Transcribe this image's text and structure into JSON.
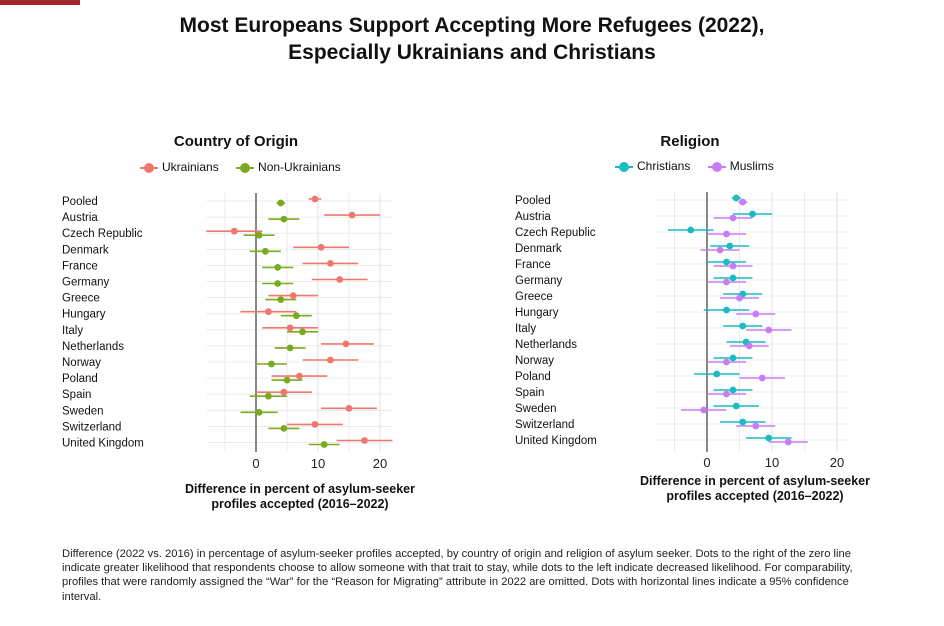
{
  "title_line1": "Most Europeans Support Accepting More Refugees (2022),",
  "title_line2": "Especially Ukrainians and Christians",
  "caption": "Difference (2022 vs. 2016) in percentage of asylum-seeker profiles accepted, by country of origin and religion of asylum seeker. Dots to the right of the zero line indicate greater likelihood that respondents choose to allow someone with that trait to stay, while dots to the left indicate decreased likelihood. For comparability, profiles that were randomly assigned the “War” for the “Reason for Migrating” attribute in 2022 are omitted. Dots with horizontal lines indicate a 95% confidence interval.",
  "colors": {
    "accent": "#a3262a",
    "ukrainians": "#f0776d",
    "non_ukrainians": "#7aaa1e",
    "christians": "#19bcc2",
    "muslims": "#c77cf5",
    "zero_line": "#555555",
    "grid": "#e6e6e6"
  },
  "chart_data": [
    {
      "type": "scatter",
      "title": "Country of Origin",
      "xlabel": "Difference in percent of asylum-seeker profiles accepted (2016–2022)",
      "xlim": [
        -8,
        22
      ],
      "xticks": [
        0,
        10,
        20
      ],
      "grid": true,
      "legend_position": "top",
      "categories": [
        "Pooled",
        "Austria",
        "Czech Republic",
        "Denmark",
        "France",
        "Germany",
        "Greece",
        "Hungary",
        "Italy",
        "Netherlands",
        "Norway",
        "Poland",
        "Spain",
        "Sweden",
        "Switzerland",
        "United Kingdom"
      ],
      "series": [
        {
          "name": "Ukrainians",
          "color": "#f0776d",
          "values": [
            9.5,
            15.5,
            -3.5,
            10.5,
            12,
            13.5,
            6,
            2,
            5.5,
            14.5,
            12,
            7,
            4.5,
            15,
            9.5,
            17.5
          ],
          "ci": [
            [
              8.5,
              10.5
            ],
            [
              11,
              20
            ],
            [
              -8,
              1
            ],
            [
              6,
              15
            ],
            [
              7.5,
              16.5
            ],
            [
              9,
              18
            ],
            [
              2,
              10
            ],
            [
              -2.5,
              6.5
            ],
            [
              1,
              10
            ],
            [
              10.5,
              19
            ],
            [
              7.5,
              16.5
            ],
            [
              2.5,
              11.5
            ],
            [
              0,
              9
            ],
            [
              10.5,
              19.5
            ],
            [
              5,
              14
            ],
            [
              13,
              22
            ]
          ]
        },
        {
          "name": "Non-Ukrainians",
          "color": "#7aaa1e",
          "values": [
            4,
            4.5,
            0.5,
            1.5,
            3.5,
            3.5,
            4,
            6.5,
            7.5,
            5.5,
            2.5,
            5,
            2,
            0.5,
            4.5,
            11
          ],
          "ci": [
            [
              3.3,
              4.7
            ],
            [
              2,
              7
            ],
            [
              -2,
              3
            ],
            [
              -1,
              4
            ],
            [
              1,
              6
            ],
            [
              1,
              6
            ],
            [
              1.5,
              6.5
            ],
            [
              4,
              9
            ],
            [
              5,
              10
            ],
            [
              3,
              8
            ],
            [
              0,
              5
            ],
            [
              2.5,
              7.5
            ],
            [
              -1,
              5
            ],
            [
              -2.5,
              3.5
            ],
            [
              2,
              7
            ],
            [
              8.5,
              13.5
            ]
          ]
        }
      ]
    },
    {
      "type": "scatter",
      "title": "Religion",
      "xlabel": "Difference in percent of asylum-seeker profiles accepted (2016–2022)",
      "xlim": [
        -8,
        22
      ],
      "xticks": [
        0,
        10,
        20
      ],
      "grid": true,
      "legend_position": "top",
      "categories": [
        "Pooled",
        "Austria",
        "Czech Republic",
        "Denmark",
        "France",
        "Germany",
        "Greece",
        "Hungary",
        "Italy",
        "Netherlands",
        "Norway",
        "Poland",
        "Spain",
        "Sweden",
        "Switzerland",
        "United Kingdom"
      ],
      "series": [
        {
          "name": "Christians",
          "color": "#19bcc2",
          "values": [
            4.5,
            7,
            -2.5,
            3.5,
            3,
            4,
            5.5,
            3,
            5.5,
            6,
            4,
            1.5,
            4,
            4.5,
            5.5,
            9.5
          ],
          "ci": [
            [
              3.8,
              5.2
            ],
            [
              4,
              10
            ],
            [
              -6,
              1
            ],
            [
              0.5,
              6.5
            ],
            [
              0,
              6
            ],
            [
              1,
              7
            ],
            [
              2.5,
              8.5
            ],
            [
              -0.5,
              6.5
            ],
            [
              2.5,
              8.5
            ],
            [
              3,
              9
            ],
            [
              1,
              7
            ],
            [
              -2,
              5
            ],
            [
              1,
              7
            ],
            [
              1,
              8
            ],
            [
              2,
              9
            ],
            [
              6,
              13
            ]
          ]
        },
        {
          "name": "Muslims",
          "color": "#c77cf5",
          "values": [
            5.5,
            4,
            3,
            2,
            4,
            3,
            5,
            7.5,
            9.5,
            6.5,
            3,
            8.5,
            3,
            -0.5,
            7.5,
            12.5
          ],
          "ci": [
            [
              4.8,
              6.2
            ],
            [
              1,
              7
            ],
            [
              0,
              6
            ],
            [
              -1,
              5
            ],
            [
              1,
              7
            ],
            [
              0,
              6
            ],
            [
              2,
              8
            ],
            [
              4.5,
              10.5
            ],
            [
              6,
              13
            ],
            [
              3.5,
              9.5
            ],
            [
              0,
              6
            ],
            [
              5,
              12
            ],
            [
              0,
              6
            ],
            [
              -4,
              3
            ],
            [
              4.5,
              10.5
            ],
            [
              9.5,
              15.5
            ]
          ]
        }
      ]
    }
  ]
}
